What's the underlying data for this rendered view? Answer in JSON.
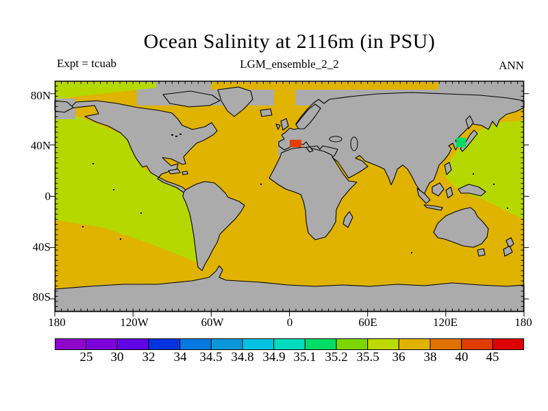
{
  "header": {
    "title": "Ocean Salinity at 2116m (in PSU)",
    "experiment_label": "Expt = tcuab",
    "run_label": "LGM_ensemble_2_2",
    "season_label": "ANN"
  },
  "chart_data": {
    "type": "heatmap",
    "title": "Ocean Salinity at 2116m (in PSU)",
    "subtitle": "LGM_ensemble_2_2",
    "annotations": [
      "Expt = tcuab",
      "ANN"
    ],
    "projection": "equirectangular world map, 180W-180E / 90S-90N",
    "units": "PSU",
    "x_axis": {
      "label": "longitude",
      "ticks": [
        "180",
        "120W",
        "60W",
        "0",
        "60E",
        "120E",
        "180"
      ]
    },
    "y_axis": {
      "label": "latitude",
      "ticks": [
        "80N",
        "40N",
        "0",
        "40S",
        "80S"
      ]
    },
    "colorbar": {
      "boundary_labels": [
        "25",
        "30",
        "32",
        "34",
        "34.5",
        "34.8",
        "34.9",
        "35.1",
        "35.2",
        "35.5",
        "36",
        "38",
        "40",
        "45"
      ],
      "segment_colors": [
        "#8E06CC",
        "#7C00DA",
        "#6103E4",
        "#0434E0",
        "#0979E2",
        "#0A98D9",
        "#06C2E2",
        "#00DCBE",
        "#00DC64",
        "#7ED600",
        "#BBDB00",
        "#DFB300",
        "#E07200",
        "#E03C00",
        "#DE0000"
      ]
    },
    "map_colors": {
      "land_nodata": "#ABABAB",
      "coastline": "#000000",
      "ocean_36_38": "#DFB300",
      "ocean_35p5_36": "#B5D900",
      "ocean_35p1_35p2": "#00DC64",
      "ocean_40_45": "#E04000"
    },
    "regions": [
      {
        "area": "North and tropical eastern Pacific, northwest Arctic strip",
        "salinity_bin": "35.5-36",
        "color": "#B5D900"
      },
      {
        "area": "Atlantic, Indian, Southern Ocean, south-west Pacific, Norwegian Sea, Arctic band",
        "salinity_bin": "36-38",
        "color": "#DFB300"
      },
      {
        "area": "Sea of Japan grid cell",
        "salinity_bin": "35.1-35.2",
        "color": "#00DC64"
      },
      {
        "area": "Western Mediterranean grid cell",
        "salinity_bin": "40-45",
        "color": "#E04000"
      },
      {
        "area": "Continents, shelves, Mediterranean interior, high Arctic, Antarctic margin",
        "salinity_bin": "land / no data",
        "color": "#ABABAB"
      }
    ]
  }
}
